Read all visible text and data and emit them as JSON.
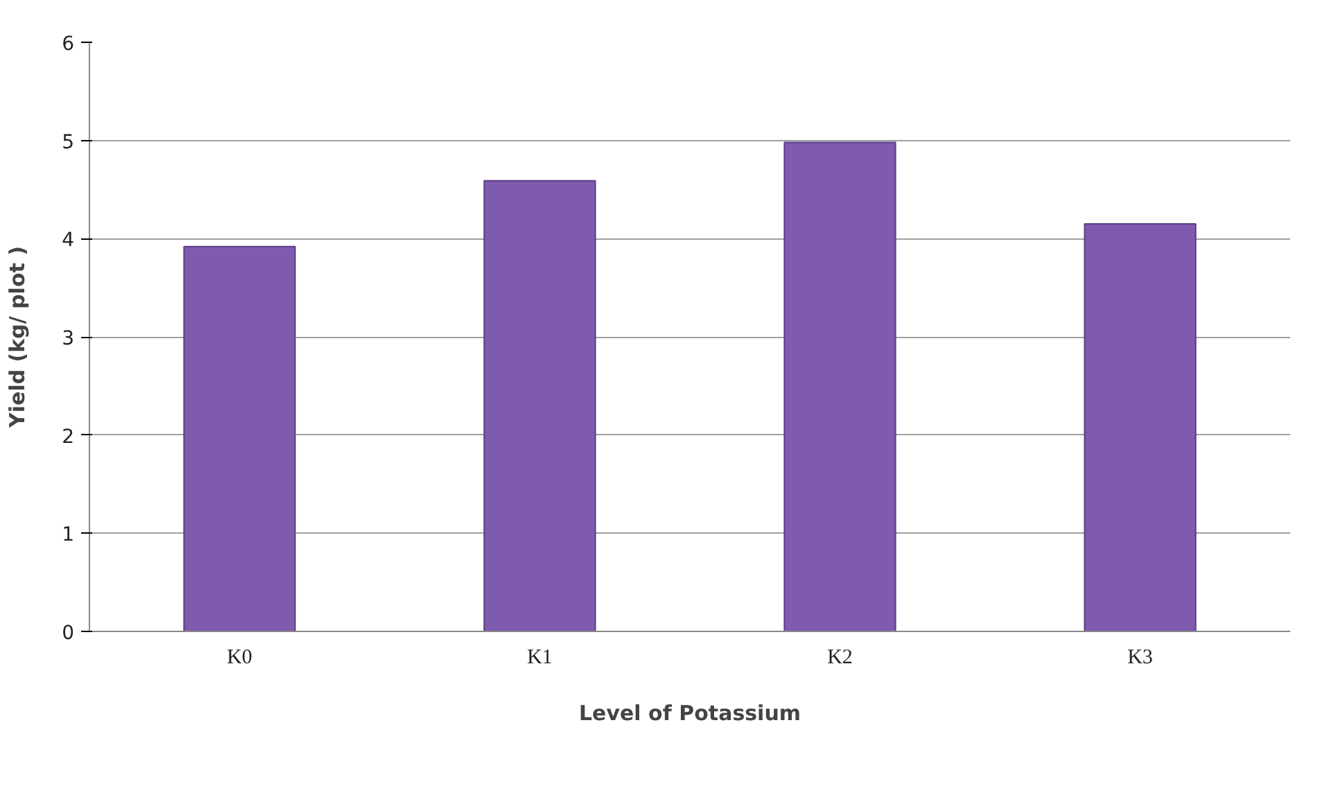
{
  "chart_data": {
    "type": "bar",
    "xlabel": "Level of Potassium",
    "ylabel": "Yield (kg/ plot )",
    "categories": [
      "K0",
      "K1",
      "K2",
      "K3"
    ],
    "values": [
      3.92,
      4.59,
      4.98,
      4.15
    ],
    "color": "#7f5bb0",
    "ylim": [
      0,
      6
    ],
    "yticks": [
      0,
      1,
      2,
      3,
      4,
      5,
      6
    ],
    "grid": "y"
  }
}
